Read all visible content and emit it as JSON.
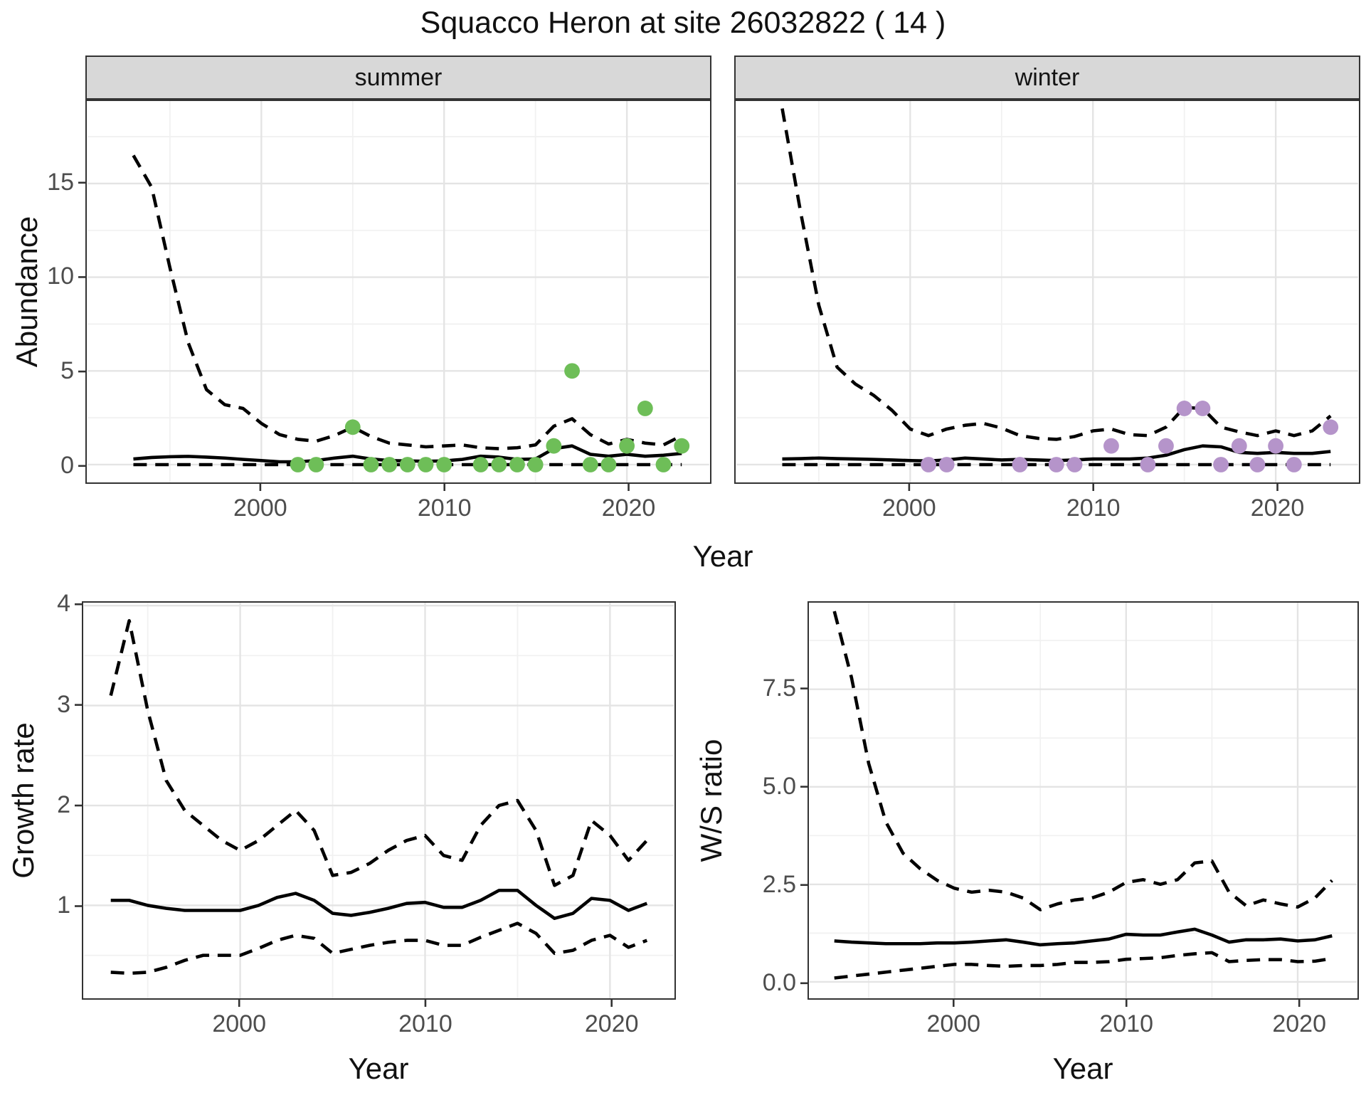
{
  "title": "Squacco Heron at site 26032822 ( 14 )",
  "facets": [
    {
      "label": "summer"
    },
    {
      "label": "winter"
    }
  ],
  "axes": {
    "year_label": "Year",
    "abundance_label": "Abundance",
    "growth_label": "Growth rate",
    "ws_label": "W/S ratio"
  },
  "colors": {
    "line": "#000000",
    "summer_point": "#6EBE58",
    "winter_point": "#B594CA",
    "grid_major": "#E4E4E4",
    "grid_minor": "#F1F1F1",
    "panel_border": "#333333",
    "strip_bg": "#D8D8D8",
    "tick_mark": "#333333",
    "tick_label": "#4D4D4D"
  },
  "chart_data": [
    {
      "id": "summer_abundance",
      "type": "line",
      "facet": "summer",
      "ylabel": "Abundance",
      "xlabel": "Year",
      "x": [
        1993,
        1994,
        1995,
        1996,
        1997,
        1998,
        1999,
        2000,
        2001,
        2002,
        2003,
        2004,
        2005,
        2006,
        2007,
        2008,
        2009,
        2010,
        2011,
        2012,
        2013,
        2014,
        2015,
        2016,
        2017,
        2018,
        2019,
        2020,
        2021,
        2022,
        2023
      ],
      "series": [
        {
          "name": "median",
          "style": "solid",
          "values": [
            0.3,
            0.38,
            0.42,
            0.44,
            0.4,
            0.35,
            0.28,
            0.22,
            0.15,
            0.15,
            0.22,
            0.35,
            0.45,
            0.3,
            0.22,
            0.2,
            0.18,
            0.2,
            0.28,
            0.45,
            0.4,
            0.28,
            0.3,
            0.85,
            1.0,
            0.55,
            0.45,
            0.55,
            0.45,
            0.5,
            0.6
          ]
        },
        {
          "name": "upper_ci",
          "style": "dashed",
          "values": [
            16.5,
            14.8,
            10.5,
            6.5,
            4.0,
            3.2,
            3.0,
            2.2,
            1.6,
            1.35,
            1.25,
            1.55,
            2.0,
            1.5,
            1.15,
            1.05,
            0.95,
            1.0,
            1.05,
            0.9,
            0.85,
            0.9,
            1.05,
            2.05,
            2.45,
            1.6,
            1.1,
            1.35,
            1.15,
            1.05,
            1.55
          ]
        },
        {
          "name": "lower_ci",
          "style": "dashed",
          "values": 0
        }
      ],
      "points": {
        "name": "observed-counts-summer",
        "color": "#6EBE58",
        "xy": [
          [
            2002,
            0
          ],
          [
            2003,
            0
          ],
          [
            2005,
            2
          ],
          [
            2006,
            0
          ],
          [
            2007,
            0
          ],
          [
            2008,
            0
          ],
          [
            2009,
            0
          ],
          [
            2010,
            0
          ],
          [
            2012,
            0
          ],
          [
            2013,
            0
          ],
          [
            2014,
            0
          ],
          [
            2015,
            0
          ],
          [
            2016,
            1
          ],
          [
            2017,
            5
          ],
          [
            2018,
            0
          ],
          [
            2019,
            0
          ],
          [
            2020,
            1
          ],
          [
            2021,
            3
          ],
          [
            2022,
            0
          ],
          [
            2023,
            1
          ]
        ]
      },
      "xlim": [
        1990.5,
        2024.5
      ],
      "ylim": [
        -0.95,
        19.4
      ],
      "xticks": {
        "major": [
          2000,
          2010,
          2020
        ],
        "minor": [
          1995,
          2005,
          2015
        ],
        "labels": [
          "2000",
          "2010",
          "2020"
        ]
      },
      "yticks": {
        "major": [
          0,
          5,
          10,
          15
        ],
        "minor": [
          2.5,
          7.5,
          12.5,
          17.5
        ],
        "labels": [
          "0",
          "5",
          "10",
          "15"
        ]
      }
    },
    {
      "id": "winter_abundance",
      "type": "line",
      "facet": "winter",
      "ylabel": "Abundance",
      "xlabel": "Year",
      "x": [
        1993,
        1994,
        1995,
        1996,
        1997,
        1998,
        1999,
        2000,
        2001,
        2002,
        2003,
        2004,
        2005,
        2006,
        2007,
        2008,
        2009,
        2010,
        2011,
        2012,
        2013,
        2014,
        2015,
        2016,
        2017,
        2018,
        2019,
        2020,
        2021,
        2022,
        2023
      ],
      "series": [
        {
          "name": "median",
          "style": "solid",
          "values": [
            0.3,
            0.32,
            0.35,
            0.32,
            0.3,
            0.28,
            0.25,
            0.22,
            0.2,
            0.25,
            0.35,
            0.3,
            0.25,
            0.28,
            0.25,
            0.22,
            0.25,
            0.3,
            0.3,
            0.3,
            0.35,
            0.5,
            0.8,
            1.0,
            0.95,
            0.65,
            0.6,
            0.65,
            0.6,
            0.6,
            0.7
          ]
        },
        {
          "name": "upper_ci",
          "style": "dashed",
          "values": [
            19.0,
            13.5,
            8.5,
            5.2,
            4.3,
            3.7,
            2.9,
            1.9,
            1.55,
            1.9,
            2.1,
            2.2,
            1.95,
            1.55,
            1.4,
            1.35,
            1.5,
            1.8,
            1.9,
            1.6,
            1.55,
            2.0,
            3.05,
            3.0,
            2.0,
            1.75,
            1.55,
            1.8,
            1.55,
            1.8,
            2.6
          ]
        },
        {
          "name": "lower_ci",
          "style": "dashed",
          "values": 0
        }
      ],
      "points": {
        "name": "observed-counts-winter",
        "color": "#B594CA",
        "xy": [
          [
            2001,
            0
          ],
          [
            2002,
            0
          ],
          [
            2006,
            0
          ],
          [
            2008,
            0
          ],
          [
            2009,
            0
          ],
          [
            2011,
            1
          ],
          [
            2013,
            0
          ],
          [
            2014,
            1
          ],
          [
            2015,
            3
          ],
          [
            2016,
            3
          ],
          [
            2017,
            0
          ],
          [
            2018,
            1
          ],
          [
            2019,
            0
          ],
          [
            2020,
            1
          ],
          [
            2021,
            0
          ],
          [
            2023,
            2
          ]
        ]
      },
      "xlim": [
        1990.5,
        2024.5
      ],
      "ylim": [
        -0.95,
        19.4
      ],
      "xticks": {
        "major": [
          2000,
          2010,
          2020
        ],
        "minor": [
          1995,
          2005,
          2015
        ],
        "labels": [
          "2000",
          "2010",
          "2020"
        ]
      },
      "yticks": {
        "major": [
          0,
          5,
          10,
          15
        ],
        "minor": [
          2.5,
          7.5,
          12.5,
          17.5
        ],
        "labels": null
      }
    },
    {
      "id": "growth_rate",
      "type": "line",
      "facet": null,
      "ylabel": "Growth rate",
      "xlabel": "Year",
      "x": [
        1993,
        1994,
        1995,
        1996,
        1997,
        1998,
        1999,
        2000,
        2001,
        2002,
        2003,
        2004,
        2005,
        2006,
        2007,
        2008,
        2009,
        2010,
        2011,
        2012,
        2013,
        2014,
        2015,
        2016,
        2017,
        2018,
        2019,
        2020,
        2021,
        2022
      ],
      "series": [
        {
          "name": "median",
          "style": "solid",
          "values": [
            1.05,
            1.05,
            1.0,
            0.97,
            0.95,
            0.95,
            0.95,
            0.95,
            1.0,
            1.08,
            1.12,
            1.05,
            0.92,
            0.9,
            0.93,
            0.97,
            1.02,
            1.03,
            0.98,
            0.98,
            1.05,
            1.15,
            1.15,
            1.0,
            0.87,
            0.92,
            1.07,
            1.05,
            0.95,
            1.02
          ]
        },
        {
          "name": "upper_ci",
          "style": "dashed",
          "values": [
            3.1,
            3.85,
            2.95,
            2.25,
            1.95,
            1.8,
            1.65,
            1.55,
            1.65,
            1.8,
            1.95,
            1.75,
            1.3,
            1.33,
            1.42,
            1.55,
            1.65,
            1.7,
            1.5,
            1.45,
            1.8,
            2.0,
            2.05,
            1.75,
            1.2,
            1.3,
            1.85,
            1.7,
            1.45,
            1.65
          ]
        },
        {
          "name": "lower_ci",
          "style": "dashed",
          "values": [
            0.33,
            0.32,
            0.33,
            0.38,
            0.45,
            0.5,
            0.5,
            0.5,
            0.57,
            0.65,
            0.7,
            0.67,
            0.52,
            0.56,
            0.6,
            0.63,
            0.65,
            0.65,
            0.6,
            0.6,
            0.68,
            0.75,
            0.82,
            0.72,
            0.52,
            0.55,
            0.65,
            0.7,
            0.58,
            0.65
          ]
        }
      ],
      "points": null,
      "xlim": [
        1991.55,
        2023.45
      ],
      "ylim": [
        0.07,
        4.03
      ],
      "xticks": {
        "major": [
          2000,
          2010,
          2020
        ],
        "minor": [
          1995,
          2005,
          2015
        ],
        "labels": [
          "2000",
          "2010",
          "2020"
        ]
      },
      "yticks": {
        "major": [
          1,
          2,
          3,
          4
        ],
        "minor": [
          0.5,
          1.5,
          2.5,
          3.5
        ],
        "labels": [
          "1",
          "2",
          "3",
          "4"
        ]
      }
    },
    {
      "id": "ws_ratio",
      "type": "line",
      "facet": null,
      "ylabel": "W/S ratio",
      "xlabel": "Year",
      "x": [
        1993,
        1994,
        1995,
        1996,
        1997,
        1998,
        1999,
        2000,
        2001,
        2002,
        2003,
        2004,
        2005,
        2006,
        2007,
        2008,
        2009,
        2010,
        2011,
        2012,
        2013,
        2014,
        2015,
        2016,
        2017,
        2018,
        2019,
        2020,
        2021,
        2022
      ],
      "series": [
        {
          "name": "median",
          "style": "solid",
          "values": [
            1.05,
            1.02,
            1.0,
            0.98,
            0.98,
            0.98,
            1.0,
            1.0,
            1.02,
            1.05,
            1.08,
            1.02,
            0.95,
            0.98,
            1.0,
            1.05,
            1.1,
            1.22,
            1.2,
            1.2,
            1.28,
            1.35,
            1.2,
            1.02,
            1.08,
            1.08,
            1.1,
            1.05,
            1.08,
            1.18
          ]
        },
        {
          "name": "upper_ci",
          "style": "dashed",
          "values": [
            9.5,
            7.8,
            5.6,
            4.1,
            3.3,
            2.9,
            2.6,
            2.4,
            2.3,
            2.35,
            2.3,
            2.15,
            1.85,
            2.0,
            2.1,
            2.15,
            2.3,
            2.55,
            2.62,
            2.5,
            2.62,
            3.05,
            3.1,
            2.3,
            1.95,
            2.1,
            2.0,
            1.92,
            2.15,
            2.6
          ]
        },
        {
          "name": "lower_ci",
          "style": "dashed",
          "values": [
            0.1,
            0.15,
            0.2,
            0.25,
            0.3,
            0.35,
            0.4,
            0.45,
            0.45,
            0.42,
            0.4,
            0.42,
            0.42,
            0.45,
            0.5,
            0.5,
            0.52,
            0.58,
            0.6,
            0.62,
            0.68,
            0.72,
            0.75,
            0.52,
            0.55,
            0.57,
            0.57,
            0.52,
            0.53,
            0.6
          ]
        }
      ],
      "points": null,
      "xlim": [
        1991.55,
        2023.45
      ],
      "ylim": [
        -0.42,
        9.72
      ],
      "xticks": {
        "major": [
          2000,
          2010,
          2020
        ],
        "minor": [
          1995,
          2005,
          2015
        ],
        "labels": [
          "2000",
          "2010",
          "2020"
        ]
      },
      "yticks": {
        "major": [
          0,
          2.5,
          5,
          7.5
        ],
        "minor": [
          1.25,
          3.75,
          6.25,
          8.75
        ],
        "labels": [
          "0.0",
          "2.5",
          "5.0",
          "7.5"
        ]
      }
    }
  ]
}
